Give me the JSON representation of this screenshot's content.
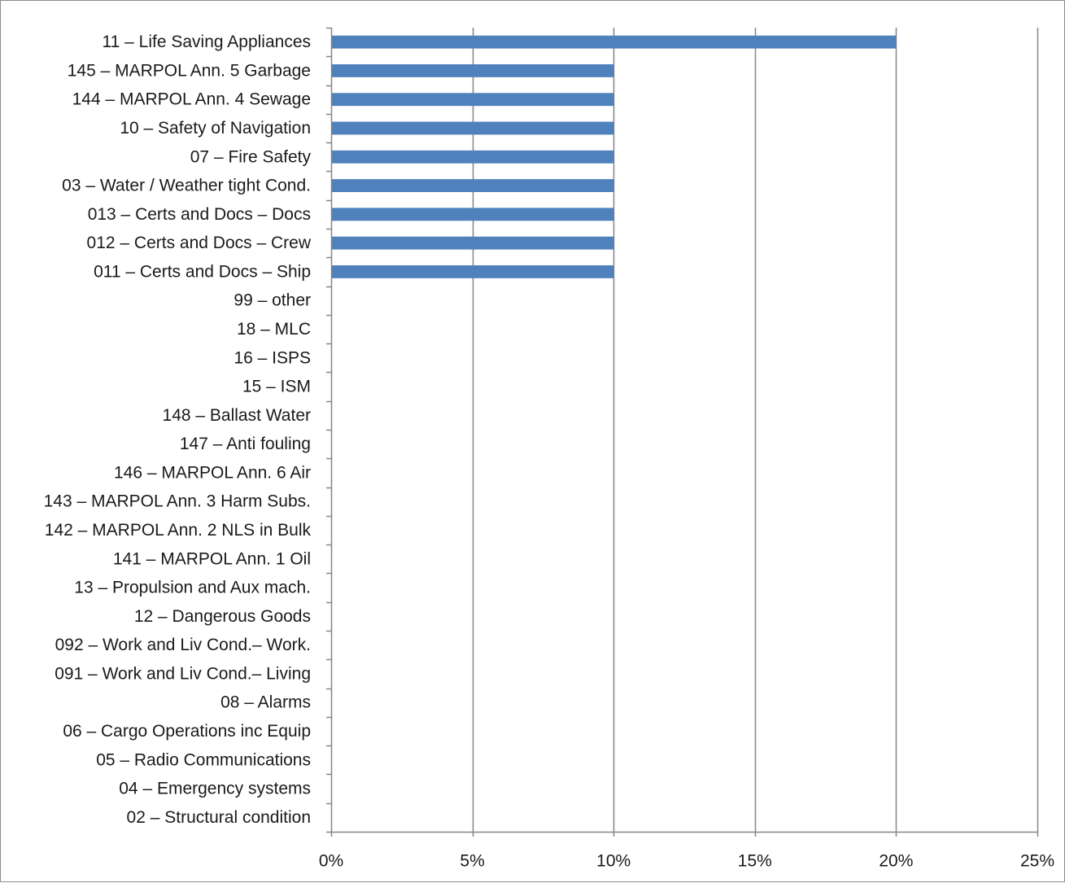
{
  "chart_data": {
    "type": "bar",
    "orientation": "horizontal",
    "title": "",
    "xlabel": "",
    "ylabel": "",
    "categories": [
      "11 – Life Saving Appliances",
      "145 – MARPOL Ann. 5 Garbage",
      "144 – MARPOL Ann. 4 Sewage",
      "10 – Safety of Navigation",
      "07 – Fire Safety",
      "03 – Water / Weather tight Cond.",
      "013 – Certs and Docs – Docs",
      "012 – Certs and Docs – Crew",
      "011 – Certs and Docs – Ship",
      "99 – other",
      "18 – MLC",
      "16 – ISPS",
      "15 – ISM",
      "148 – Ballast Water",
      "147 – Anti fouling",
      "146 – MARPOL Ann. 6 Air",
      "143 – MARPOL Ann. 3 Harm Subs.",
      "142 – MARPOL Ann. 2 NLS in Bulk",
      "141 – MARPOL Ann. 1 Oil",
      "13 – Propulsion and Aux mach.",
      "12 – Dangerous Goods",
      "092 – Work and Liv Cond.– Work.",
      "091 – Work and Liv Cond.– Living",
      "08 – Alarms",
      "06 – Cargo Operations inc Equip",
      "05 – Radio Communications",
      "04 – Emergency systems",
      "02 – Structural condition"
    ],
    "values": [
      20,
      10,
      10,
      10,
      10,
      10,
      10,
      10,
      10,
      0,
      0,
      0,
      0,
      0,
      0,
      0,
      0,
      0,
      0,
      0,
      0,
      0,
      0,
      0,
      0,
      0,
      0,
      0
    ],
    "xlim": [
      0,
      25
    ],
    "xticks": [
      0,
      5,
      10,
      15,
      20,
      25
    ],
    "xtick_labels": [
      "0%",
      "5%",
      "10%",
      "15%",
      "20%",
      "25%"
    ],
    "value_unit": "%",
    "grid": "vertical",
    "legend": "none",
    "bar_color": "#4f81bd",
    "grid_color": "#868686",
    "axis_color": "#868686"
  }
}
